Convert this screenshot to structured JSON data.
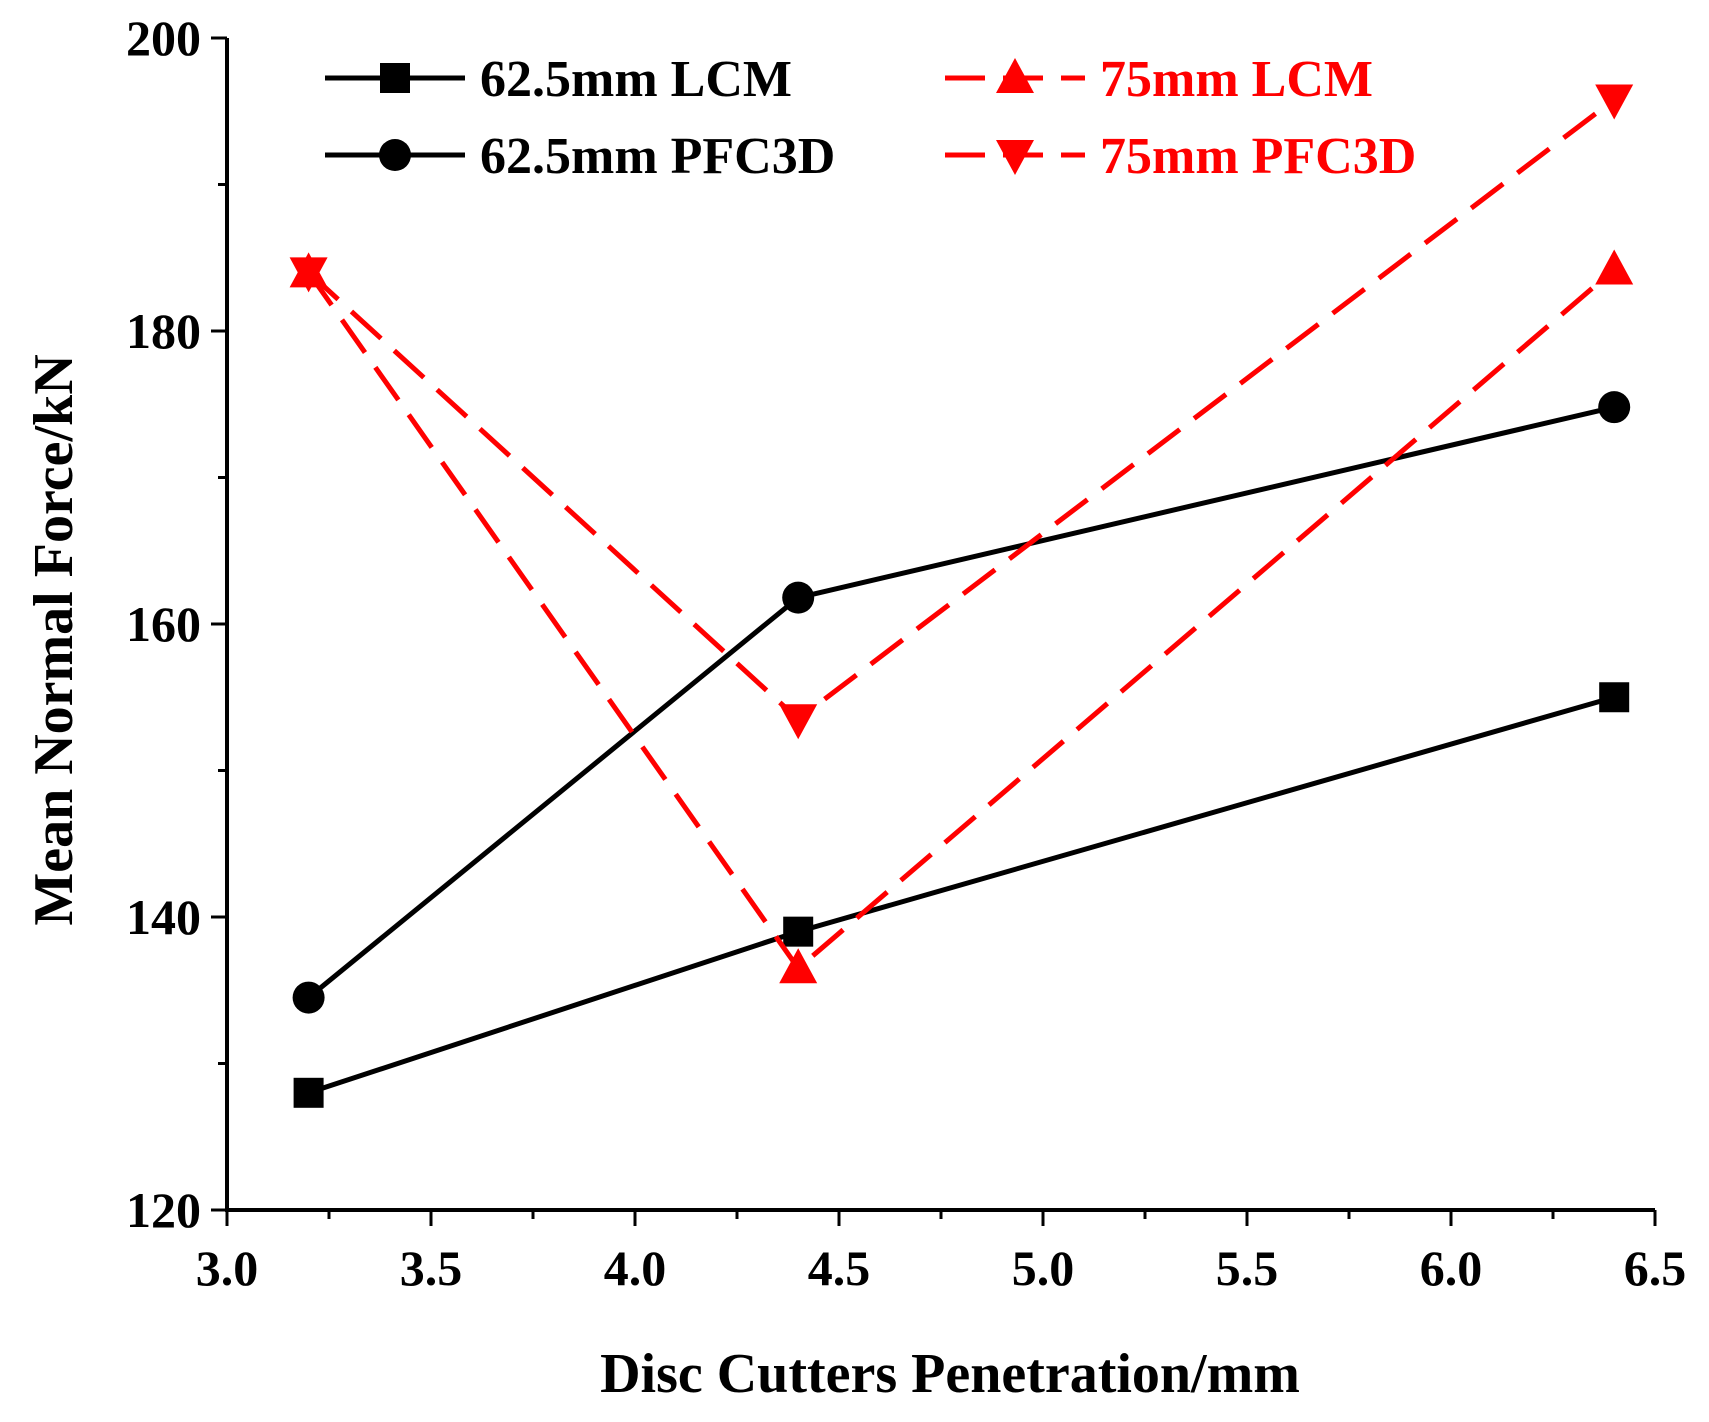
{
  "chart_data": {
    "type": "line",
    "title": "",
    "xlabel": "Disc Cutters Penetration/mm",
    "ylabel": "Mean Normal Force/kN",
    "xlim": [
      3.0,
      6.5
    ],
    "ylim": [
      120,
      200
    ],
    "xticks": [
      "3.0",
      "3.5",
      "4.0",
      "4.5",
      "5.0",
      "5.5",
      "6.0",
      "6.5"
    ],
    "yticks": [
      "120",
      "140",
      "160",
      "180",
      "200"
    ],
    "legend_position": "top",
    "series": [
      {
        "name": "62.5mm LCM",
        "x": [
          3.2,
          4.4,
          6.4
        ],
        "values": [
          128,
          139,
          155
        ],
        "color": "#000000",
        "line": "solid",
        "marker": "square"
      },
      {
        "name": "62.5mm PFC3D",
        "x": [
          3.2,
          4.4,
          6.4
        ],
        "values": [
          134.5,
          161.8,
          174.8
        ],
        "color": "#000000",
        "line": "solid",
        "marker": "circle"
      },
      {
        "name": "75mm LCM",
        "x": [
          3.2,
          4.4,
          6.4
        ],
        "values": [
          184,
          136.5,
          184.2
        ],
        "color": "#ff0000",
        "line": "dashed",
        "marker": "triangle-up"
      },
      {
        "name": "75mm PFC3D",
        "x": [
          3.2,
          4.4,
          6.4
        ],
        "values": [
          184,
          153.5,
          195.8
        ],
        "color": "#ff0000",
        "line": "dashed",
        "marker": "triangle-down"
      }
    ]
  }
}
